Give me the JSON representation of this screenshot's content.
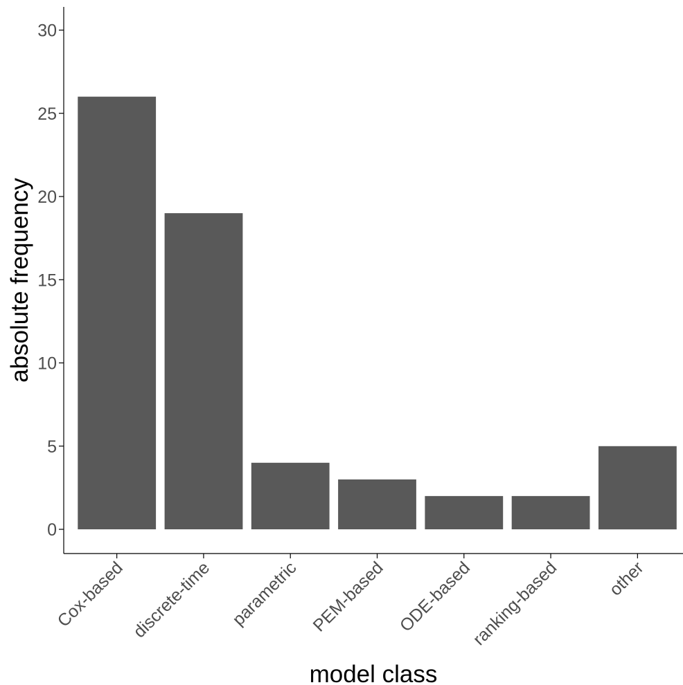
{
  "chart_data": {
    "type": "bar",
    "categories": [
      "Cox-based",
      "discrete-time",
      "parametric",
      "PEM-based",
      "ODE-based",
      "ranking-based",
      "other"
    ],
    "values": [
      26,
      19,
      4,
      3,
      2,
      2,
      5
    ],
    "title": "",
    "xlabel": "model class",
    "ylabel": "absolute frequency",
    "ylim": [
      0,
      30
    ],
    "yticks": [
      0,
      5,
      10,
      15,
      20,
      25,
      30
    ],
    "grid": false,
    "legend": "none"
  },
  "colors": {
    "bar_fill": "#595959",
    "axis_line": "#000000",
    "tick_label": "#4d4d4d",
    "axis_title": "#000000",
    "background": "#ffffff"
  }
}
